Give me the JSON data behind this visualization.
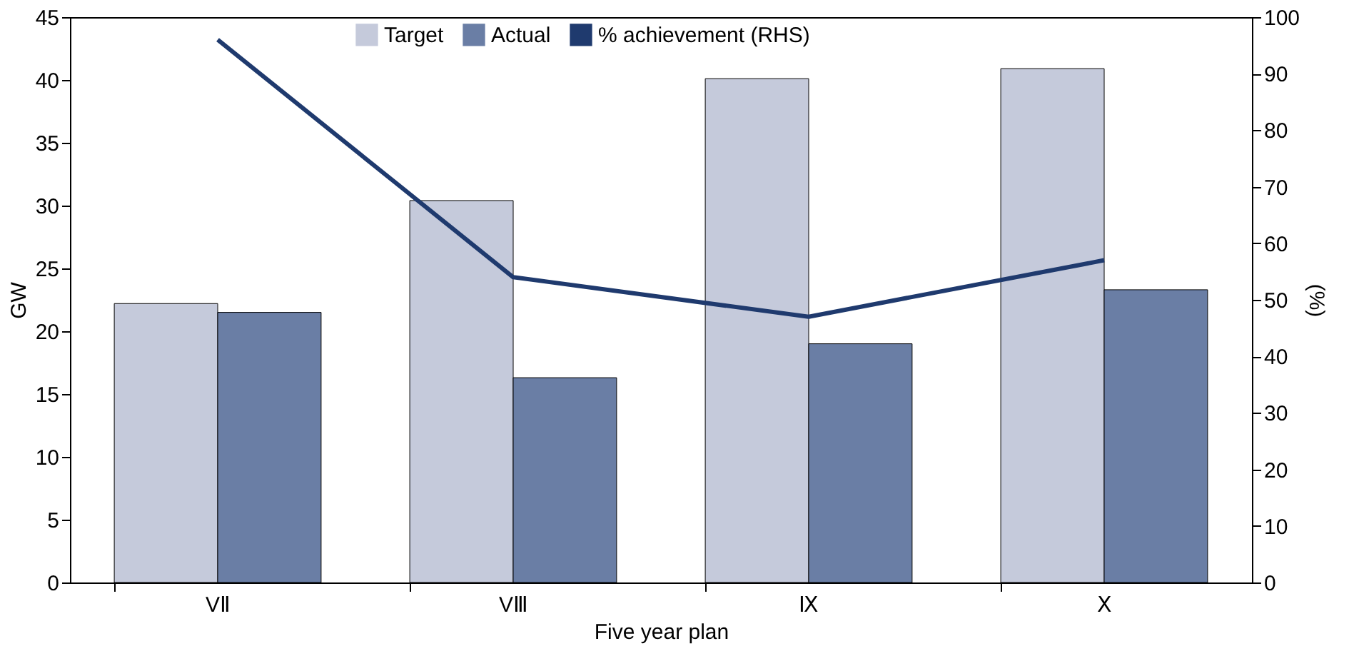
{
  "chart_data": {
    "type": "bar",
    "xlabel": "Five year plan",
    "ylabel": "GW",
    "y2label": "(%)",
    "categories": [
      "VⅡ",
      "VⅢ",
      "Ⅸ",
      "Ⅹ"
    ],
    "series": [
      {
        "name": "Target",
        "color": "#c5cadb",
        "values": [
          22.2,
          30.4,
          40.1,
          40.9
        ]
      },
      {
        "name": "Actual",
        "color": "#6a7ea5",
        "values": [
          21.5,
          16.3,
          19.0,
          23.3
        ]
      },
      {
        "name": "% achievement (RHS)",
        "type": "line",
        "axis": "y2",
        "color": "#1f3a6e",
        "values": [
          96,
          54,
          47,
          57
        ]
      }
    ],
    "ylim": [
      0,
      45
    ],
    "yticks": [
      0,
      5,
      10,
      15,
      20,
      25,
      30,
      35,
      40,
      45
    ],
    "y2lim": [
      0,
      100
    ],
    "y2ticks": [
      0,
      10,
      20,
      30,
      40,
      50,
      60,
      70,
      80,
      90,
      100
    ],
    "legend": "top",
    "grid": false,
    "marker": "none"
  }
}
